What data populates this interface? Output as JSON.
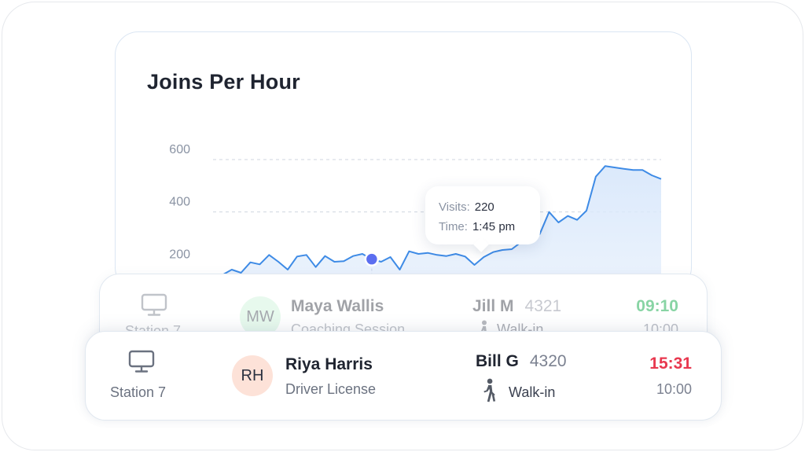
{
  "chart": {
    "title": "Joins Per Hour",
    "tooltip": {
      "visits_label": "Visits:",
      "visits_value": "220",
      "time_label": "Time:",
      "time_value": "1:45 pm"
    },
    "colors": {
      "line": "#3e8be6",
      "area": "#dbe9fb",
      "marker": "#5b6ef0",
      "grid": "#cfd6df"
    }
  },
  "chart_data": {
    "type": "area",
    "ylim": [
      0,
      600
    ],
    "y_ticks": [
      "600",
      "400",
      "200"
    ],
    "grid": "dashed horizontal",
    "series": [
      {
        "x": [
          0,
          1,
          2,
          3,
          4,
          5,
          6,
          7,
          8,
          9,
          10,
          11,
          12,
          13,
          14,
          15,
          16,
          17,
          18,
          19,
          20,
          21,
          22,
          23,
          24,
          25,
          26,
          27,
          28,
          29,
          30,
          31,
          32,
          33,
          34,
          35,
          36,
          37,
          38,
          39,
          40,
          41,
          42,
          43,
          44,
          45,
          46,
          47,
          48
        ],
        "values": [
          150,
          160,
          180,
          168,
          208,
          200,
          236,
          210,
          180,
          230,
          236,
          190,
          232,
          210,
          212,
          232,
          240,
          220,
          210,
          228,
          180,
          250,
          240,
          244,
          236,
          232,
          240,
          230,
          198,
          228,
          247,
          255,
          258,
          285,
          300,
          316,
          400,
          360,
          385,
          370,
          405,
          535,
          575,
          570,
          565,
          560,
          560,
          540,
          526
        ]
      }
    ],
    "highlight": {
      "x": 17,
      "value": 220,
      "time": "1:45 pm"
    }
  },
  "rows": [
    {
      "station_icon": "monitor-icon",
      "station": "Station 7",
      "avatar": "MW",
      "avatar_color": "#c8f1d6",
      "name": "Maya Wallis",
      "service": "Coaching Session",
      "agent": "Jill M",
      "code": "4321",
      "type_icon": "walking-person-icon",
      "type": "Walk-in",
      "wait": "09:10",
      "wait_color": "#27b15a",
      "time": "10:00"
    },
    {
      "station_icon": "monitor-icon",
      "station": "Station 7",
      "avatar": "RH",
      "avatar_color": "#fde2d8",
      "name": "Riya Harris",
      "service": "Driver License",
      "agent": "Bill G",
      "code": "4320",
      "type_icon": "walking-person-icon",
      "type": "Walk-in",
      "wait": "15:31",
      "wait_color": "#e8384f",
      "time": "10:00"
    }
  ]
}
